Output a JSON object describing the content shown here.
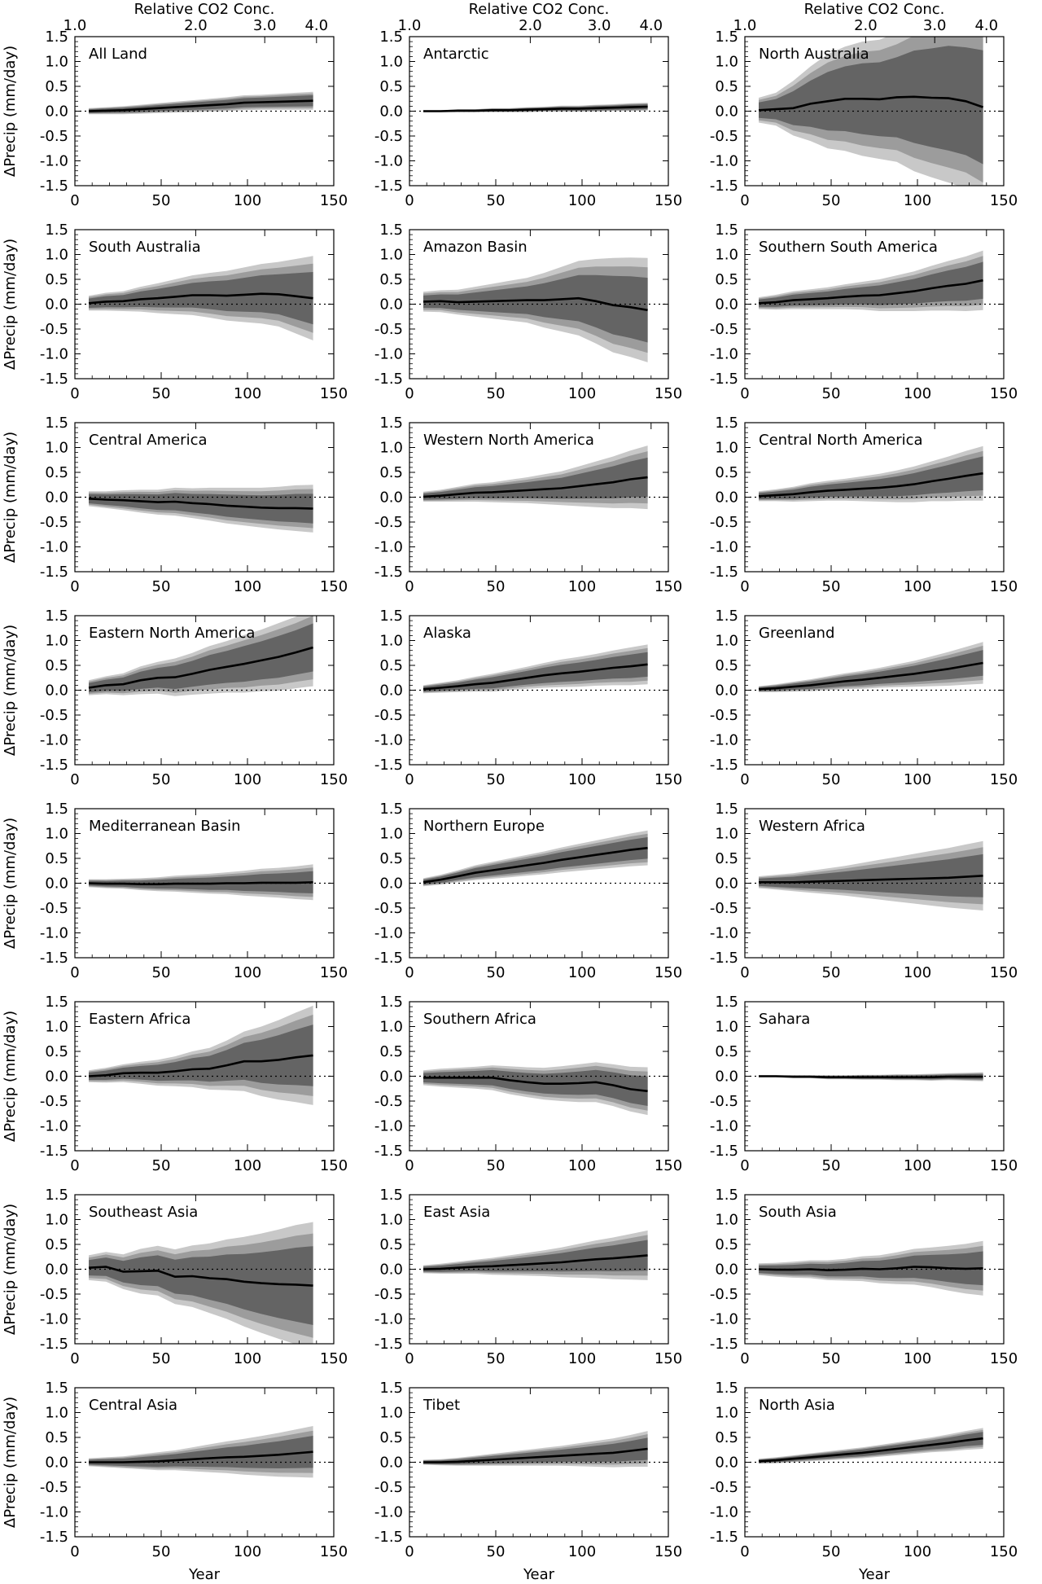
{
  "figure": {
    "y_axis_title": "ΔPrecip (mm/day)",
    "x_axis_title": "Year",
    "top_axis_title": "Relative CO2 Conc."
  },
  "chart_data": {
    "type": "area",
    "x_axis": {
      "label": "Year",
      "range": [
        0,
        150
      ],
      "ticks": [
        "0",
        "50",
        "100",
        "150"
      ]
    },
    "y_axis": {
      "label": "ΔPrecip (mm/day)",
      "range": [
        -1.5,
        1.5
      ],
      "ticks": [
        "1.5",
        "1.0",
        "0.5",
        "0.0",
        "-0.5",
        "-1.0",
        "-1.5"
      ]
    },
    "top_axis": {
      "label": "Relative CO2 Conc.",
      "ticks": [
        {
          "label": "1.0",
          "year": 0
        },
        {
          "label": "2.0",
          "year": 70
        },
        {
          "label": "3.0",
          "year": 110
        },
        {
          "label": "4.0",
          "year": 140
        }
      ]
    },
    "zero_line": "dotted",
    "years": [
      8,
      18,
      28,
      38,
      48,
      58,
      68,
      78,
      88,
      98,
      108,
      118,
      128,
      138
    ],
    "shading": [
      "light gray outer band",
      "medium gray band",
      "dark gray inner band"
    ],
    "panels": [
      {
        "region": "All Land",
        "mean": [
          0.0,
          0.01,
          0.02,
          0.04,
          0.06,
          0.08,
          0.1,
          0.12,
          0.14,
          0.17,
          0.18,
          0.19,
          0.2,
          0.21
        ],
        "spread": [
          0.06,
          0.07,
          0.08,
          0.09,
          0.1,
          0.11,
          0.12,
          0.13,
          0.14,
          0.15,
          0.15,
          0.16,
          0.17,
          0.18
        ]
      },
      {
        "region": "Antarctic",
        "mean": [
          0.0,
          0.0,
          0.01,
          0.01,
          0.02,
          0.02,
          0.03,
          0.04,
          0.05,
          0.05,
          0.06,
          0.07,
          0.08,
          0.09
        ],
        "spread": [
          0.02,
          0.02,
          0.03,
          0.03,
          0.04,
          0.04,
          0.05,
          0.05,
          0.06,
          0.06,
          0.07,
          0.07,
          0.08,
          0.08
        ]
      },
      {
        "region": "North Australia",
        "mean": [
          0.02,
          0.04,
          0.06,
          0.15,
          0.2,
          0.25,
          0.25,
          0.24,
          0.28,
          0.29,
          0.27,
          0.26,
          0.2,
          0.08
        ],
        "spread": [
          0.25,
          0.33,
          0.55,
          0.75,
          0.95,
          1.05,
          1.15,
          1.2,
          1.3,
          1.5,
          1.6,
          1.7,
          1.75,
          1.85
        ]
      },
      {
        "region": "South Australia",
        "mean": [
          0.02,
          0.05,
          0.06,
          0.1,
          0.12,
          0.15,
          0.18,
          0.18,
          0.17,
          0.19,
          0.21,
          0.2,
          0.16,
          0.12
        ],
        "spread": [
          0.15,
          0.18,
          0.2,
          0.25,
          0.3,
          0.35,
          0.4,
          0.45,
          0.5,
          0.55,
          0.6,
          0.65,
          0.75,
          0.85
        ]
      },
      {
        "region": "Amazon Basin",
        "mean": [
          0.05,
          0.06,
          0.04,
          0.05,
          0.06,
          0.07,
          0.08,
          0.08,
          0.1,
          0.12,
          0.06,
          -0.02,
          -0.06,
          -0.12
        ],
        "spread": [
          0.2,
          0.22,
          0.25,
          0.3,
          0.35,
          0.4,
          0.45,
          0.55,
          0.65,
          0.75,
          0.85,
          0.95,
          1.0,
          1.05
        ]
      },
      {
        "region": "Southern South America",
        "mean": [
          0.02,
          0.04,
          0.08,
          0.1,
          0.12,
          0.15,
          0.17,
          0.18,
          0.22,
          0.26,
          0.32,
          0.37,
          0.41,
          0.48
        ],
        "spread": [
          0.12,
          0.15,
          0.18,
          0.2,
          0.22,
          0.25,
          0.28,
          0.32,
          0.36,
          0.4,
          0.45,
          0.5,
          0.55,
          0.6
        ]
      },
      {
        "region": "Central America",
        "mean": [
          -0.03,
          -0.05,
          -0.06,
          -0.08,
          -0.1,
          -0.09,
          -0.12,
          -0.14,
          -0.17,
          -0.19,
          -0.21,
          -0.22,
          -0.22,
          -0.23
        ],
        "spread": [
          0.15,
          0.17,
          0.2,
          0.23,
          0.25,
          0.28,
          0.3,
          0.33,
          0.36,
          0.38,
          0.4,
          0.43,
          0.46,
          0.48
        ]
      },
      {
        "region": "Western North America",
        "mean": [
          0.01,
          0.03,
          0.06,
          0.09,
          0.1,
          0.12,
          0.14,
          0.16,
          0.18,
          0.22,
          0.26,
          0.3,
          0.36,
          0.4
        ],
        "spread": [
          0.1,
          0.12,
          0.15,
          0.18,
          0.2,
          0.23,
          0.26,
          0.3,
          0.34,
          0.4,
          0.46,
          0.52,
          0.58,
          0.64
        ]
      },
      {
        "region": "Central North America",
        "mean": [
          0.02,
          0.04,
          0.06,
          0.1,
          0.13,
          0.15,
          0.17,
          0.19,
          0.22,
          0.26,
          0.32,
          0.37,
          0.43,
          0.48
        ],
        "spread": [
          0.1,
          0.12,
          0.15,
          0.18,
          0.2,
          0.22,
          0.25,
          0.28,
          0.32,
          0.36,
          0.4,
          0.45,
          0.5,
          0.55
        ]
      },
      {
        "region": "Eastern North America",
        "mean": [
          0.05,
          0.1,
          0.12,
          0.2,
          0.25,
          0.26,
          0.33,
          0.41,
          0.47,
          0.53,
          0.6,
          0.67,
          0.76,
          0.86
        ],
        "spread": [
          0.15,
          0.18,
          0.22,
          0.28,
          0.32,
          0.38,
          0.42,
          0.48,
          0.52,
          0.58,
          0.62,
          0.68,
          0.72,
          0.78
        ]
      },
      {
        "region": "Alaska",
        "mean": [
          0.02,
          0.05,
          0.08,
          0.12,
          0.15,
          0.2,
          0.25,
          0.3,
          0.34,
          0.37,
          0.41,
          0.45,
          0.48,
          0.52
        ],
        "spread": [
          0.08,
          0.1,
          0.12,
          0.15,
          0.18,
          0.2,
          0.22,
          0.25,
          0.28,
          0.3,
          0.32,
          0.35,
          0.38,
          0.4
        ]
      },
      {
        "region": "Greenland",
        "mean": [
          0.02,
          0.04,
          0.07,
          0.1,
          0.14,
          0.18,
          0.21,
          0.25,
          0.29,
          0.33,
          0.38,
          0.43,
          0.49,
          0.55
        ],
        "spread": [
          0.06,
          0.08,
          0.1,
          0.12,
          0.14,
          0.16,
          0.18,
          0.2,
          0.23,
          0.26,
          0.3,
          0.34,
          0.38,
          0.42
        ]
      },
      {
        "region": "Mediterranean Basin",
        "mean": [
          0.0,
          -0.01,
          -0.01,
          -0.02,
          -0.02,
          -0.01,
          -0.01,
          -0.01,
          0.0,
          0.0,
          0.01,
          0.01,
          0.01,
          0.02
        ],
        "spread": [
          0.08,
          0.09,
          0.1,
          0.12,
          0.14,
          0.16,
          0.18,
          0.2,
          0.22,
          0.25,
          0.28,
          0.3,
          0.33,
          0.36
        ]
      },
      {
        "region": "Northern Europe",
        "mean": [
          0.02,
          0.07,
          0.14,
          0.21,
          0.26,
          0.31,
          0.36,
          0.41,
          0.47,
          0.52,
          0.57,
          0.62,
          0.67,
          0.71
        ],
        "spread": [
          0.08,
          0.1,
          0.12,
          0.15,
          0.17,
          0.19,
          0.21,
          0.23,
          0.25,
          0.27,
          0.29,
          0.31,
          0.33,
          0.35
        ]
      },
      {
        "region": "Western Africa",
        "mean": [
          0.02,
          0.02,
          0.02,
          0.03,
          0.04,
          0.05,
          0.06,
          0.07,
          0.08,
          0.09,
          0.1,
          0.11,
          0.13,
          0.15
        ],
        "spread": [
          0.12,
          0.15,
          0.18,
          0.22,
          0.26,
          0.3,
          0.35,
          0.4,
          0.45,
          0.5,
          0.55,
          0.6,
          0.65,
          0.7
        ]
      },
      {
        "region": "Eastern Africa",
        "mean": [
          0.0,
          0.02,
          0.06,
          0.07,
          0.07,
          0.1,
          0.14,
          0.15,
          0.22,
          0.3,
          0.3,
          0.33,
          0.38,
          0.42
        ],
        "spread": [
          0.12,
          0.15,
          0.18,
          0.22,
          0.26,
          0.3,
          0.36,
          0.42,
          0.5,
          0.6,
          0.7,
          0.8,
          0.9,
          1.0
        ]
      },
      {
        "region": "Southern Africa",
        "mean": [
          -0.03,
          -0.03,
          -0.03,
          -0.03,
          -0.03,
          -0.08,
          -0.12,
          -0.15,
          -0.15,
          -0.14,
          -0.12,
          -0.18,
          -0.26,
          -0.3
        ],
        "spread": [
          0.15,
          0.18,
          0.2,
          0.22,
          0.25,
          0.28,
          0.3,
          0.32,
          0.35,
          0.38,
          0.4,
          0.42,
          0.45,
          0.48
        ]
      },
      {
        "region": "Sahara",
        "mean": [
          0.0,
          0.0,
          -0.01,
          -0.01,
          -0.02,
          -0.02,
          -0.02,
          -0.02,
          -0.02,
          -0.02,
          -0.02,
          -0.01,
          -0.01,
          -0.01
        ],
        "spread": [
          0.02,
          0.02,
          0.03,
          0.03,
          0.04,
          0.04,
          0.05,
          0.05,
          0.06,
          0.06,
          0.07,
          0.07,
          0.08,
          0.09
        ]
      },
      {
        "region": "Southeast Asia",
        "mean": [
          0.03,
          0.05,
          -0.05,
          -0.04,
          -0.03,
          -0.15,
          -0.14,
          -0.18,
          -0.2,
          -0.25,
          -0.28,
          -0.3,
          -0.31,
          -0.33
        ],
        "spread": [
          0.25,
          0.3,
          0.35,
          0.45,
          0.5,
          0.55,
          0.62,
          0.7,
          0.8,
          0.9,
          1.0,
          1.1,
          1.2,
          1.28
        ]
      },
      {
        "region": "East Asia",
        "mean": [
          0.0,
          0.01,
          0.03,
          0.05,
          0.06,
          0.08,
          0.1,
          0.12,
          0.14,
          0.17,
          0.2,
          0.22,
          0.25,
          0.28
        ],
        "spread": [
          0.08,
          0.1,
          0.12,
          0.14,
          0.17,
          0.2,
          0.23,
          0.26,
          0.3,
          0.34,
          0.38,
          0.42,
          0.46,
          0.5
        ]
      },
      {
        "region": "South Asia",
        "mean": [
          0.0,
          -0.01,
          -0.01,
          0.0,
          -0.02,
          -0.01,
          0.01,
          0.0,
          0.02,
          0.05,
          0.04,
          0.02,
          0.01,
          0.02
        ],
        "spread": [
          0.12,
          0.14,
          0.16,
          0.18,
          0.2,
          0.22,
          0.25,
          0.28,
          0.32,
          0.36,
          0.4,
          0.45,
          0.5,
          0.55
        ]
      },
      {
        "region": "Central Asia",
        "mean": [
          0.0,
          0.0,
          0.0,
          0.01,
          0.02,
          0.04,
          0.06,
          0.08,
          0.1,
          0.11,
          0.13,
          0.15,
          0.18,
          0.21
        ],
        "spread": [
          0.08,
          0.1,
          0.12,
          0.15,
          0.18,
          0.2,
          0.24,
          0.28,
          0.32,
          0.36,
          0.4,
          0.44,
          0.48,
          0.52
        ]
      },
      {
        "region": "Tibet",
        "mean": [
          0.0,
          0.0,
          0.01,
          0.03,
          0.05,
          0.07,
          0.09,
          0.11,
          0.13,
          0.15,
          0.17,
          0.19,
          0.23,
          0.27
        ],
        "spread": [
          0.05,
          0.06,
          0.08,
          0.1,
          0.12,
          0.14,
          0.16,
          0.18,
          0.2,
          0.23,
          0.26,
          0.29,
          0.32,
          0.36
        ]
      },
      {
        "region": "North Asia",
        "mean": [
          0.02,
          0.04,
          0.07,
          0.1,
          0.13,
          0.16,
          0.19,
          0.23,
          0.27,
          0.31,
          0.35,
          0.39,
          0.44,
          0.48
        ],
        "spread": [
          0.05,
          0.06,
          0.07,
          0.08,
          0.09,
          0.1,
          0.11,
          0.12,
          0.13,
          0.14,
          0.15,
          0.17,
          0.19,
          0.21
        ]
      }
    ]
  }
}
